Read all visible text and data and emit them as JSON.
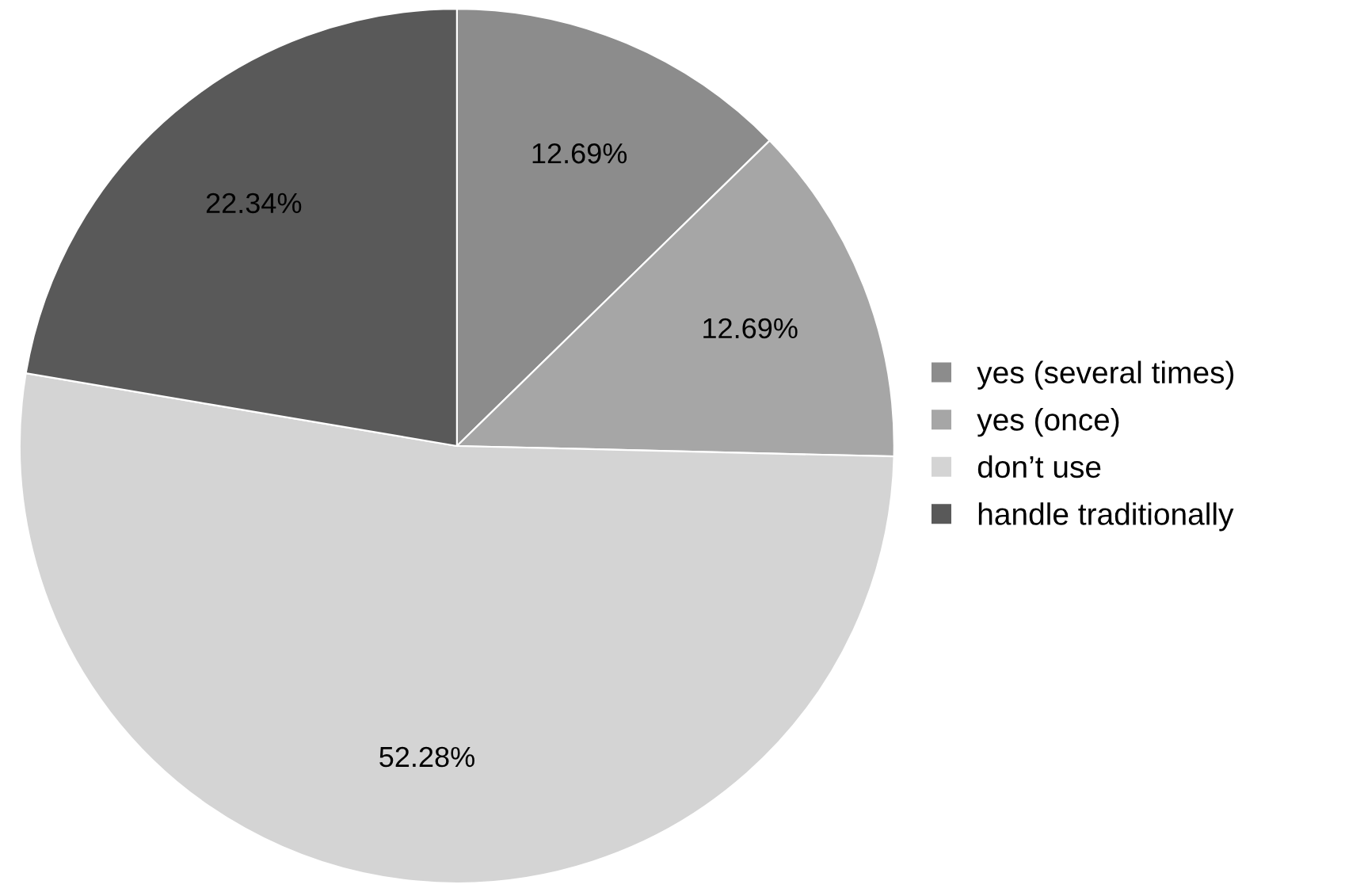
{
  "chart_data": {
    "type": "pie",
    "categories": [
      "yes (several times)",
      "yes (once)",
      "don’t use",
      "handle traditionally"
    ],
    "values": [
      12.69,
      12.69,
      52.28,
      22.34
    ],
    "colors": [
      "#8c8c8c",
      "#a6a6a6",
      "#d4d4d4",
      "#595959"
    ],
    "value_labels": [
      "12.69%",
      "12.69%",
      "52.28%",
      "22.34%"
    ],
    "legend": "right"
  }
}
